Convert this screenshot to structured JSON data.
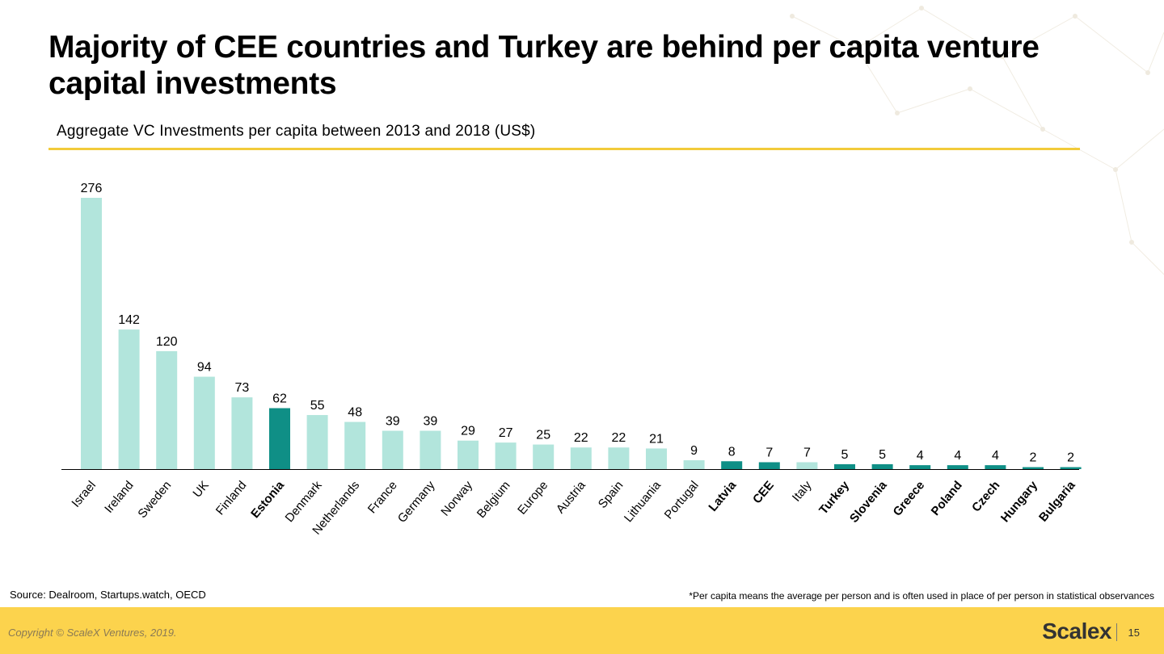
{
  "title": "Majority of CEE countries and Turkey are behind per capita venture capital investments",
  "subtitle": "Aggregate VC Investments per capita between 2013 and 2018 (US$)",
  "source": "Source: Dealroom, Startups.watch, OECD",
  "footnote": "*Per capita means the average per person and is often used in place of per person in statistical observances",
  "footer": {
    "copyright": "Copyright © ScaleX Ventures, 2019.",
    "logo": "Scalex",
    "page": "15"
  },
  "colors": {
    "light_bar": "#b2e5dc",
    "highlight_bar": "#0f8f86",
    "rule": "#f2cb3a",
    "footer_bg": "#fcd34d"
  },
  "chart_data": {
    "type": "bar",
    "title": "Aggregate VC Investments per capita between 2013 and 2018 (US$)",
    "categories": [
      "Israel",
      "Ireland",
      "Sweden",
      "UK",
      "Finland",
      "Estonia",
      "Denmark",
      "Netherlands",
      "France",
      "Germany",
      "Norway",
      "Belgium",
      "Europe",
      "Austria",
      "Spain",
      "Lithuania",
      "Portugal",
      "Latvia",
      "CEE",
      "Italy",
      "Turkey",
      "Slovenia",
      "Greece",
      "Poland",
      "Czech",
      "Hungary",
      "Bulgaria"
    ],
    "values": [
      276,
      142,
      120,
      94,
      73,
      62,
      55,
      48,
      39,
      39,
      29,
      27,
      25,
      22,
      22,
      21,
      9,
      8,
      7,
      7,
      5,
      5,
      4,
      4,
      4,
      2,
      2
    ],
    "highlighted": [
      "Estonia",
      "Latvia",
      "CEE",
      "Turkey",
      "Slovenia",
      "Greece",
      "Poland",
      "Czech",
      "Hungary",
      "Bulgaria"
    ],
    "ylim": [
      0,
      276
    ],
    "data_labels": true,
    "grid": false,
    "legend": "none"
  }
}
